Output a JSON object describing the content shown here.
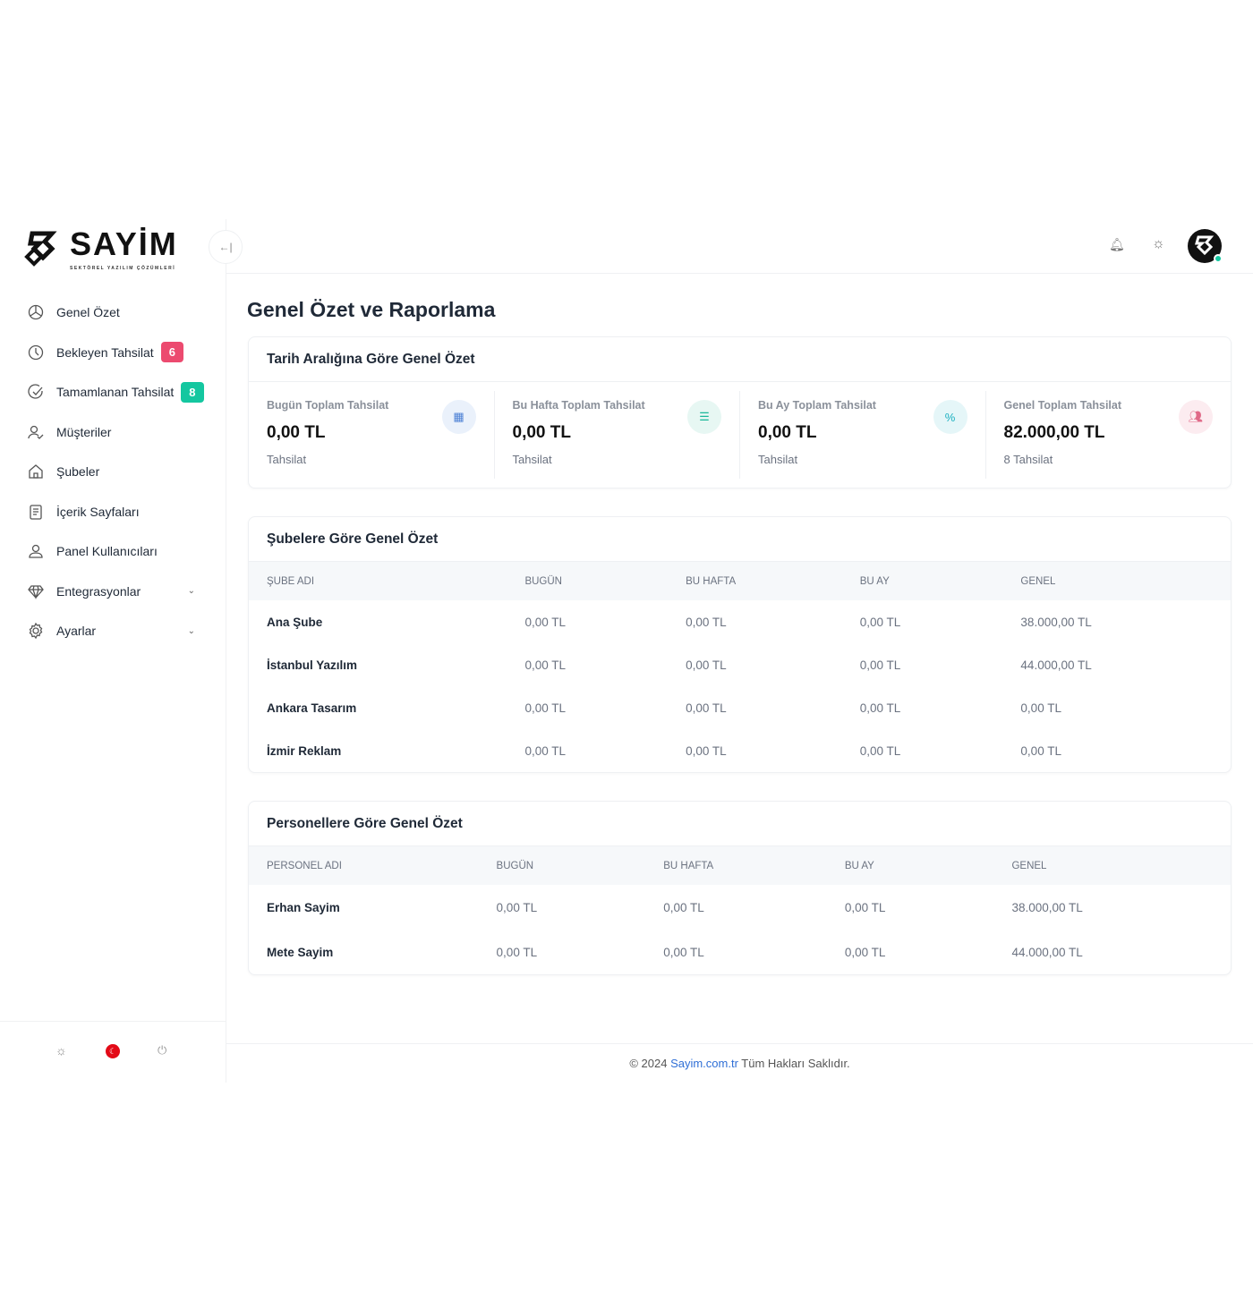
{
  "brand": {
    "name": "SAYİM",
    "tagline": "SEKTÖREL YAZILIM ÇÖZÜMLERİ"
  },
  "sidebar": {
    "items": [
      {
        "label": "Genel Özet",
        "icon": "pie-chart-icon"
      },
      {
        "label": "Bekleyen Tahsilat",
        "icon": "clock-icon",
        "badge": "6",
        "badge_color": "#ec4a6f"
      },
      {
        "label": "Tamamlanan Tahsilat",
        "icon": "check-circle-icon",
        "badge": "8",
        "badge_color": "#14c7a0"
      },
      {
        "label": "Müşteriler",
        "icon": "user-check-icon"
      },
      {
        "label": "Şubeler",
        "icon": "home-icon"
      },
      {
        "label": "İçerik Sayfaları",
        "icon": "document-icon"
      },
      {
        "label": "Panel Kullanıcıları",
        "icon": "user-icon"
      },
      {
        "label": "Entegrasyonlar",
        "icon": "diamond-icon",
        "has_submenu": true
      },
      {
        "label": "Ayarlar",
        "icon": "gear-icon",
        "has_submenu": true
      }
    ]
  },
  "page": {
    "title": "Genel Özet ve Raporlama"
  },
  "summary": {
    "title": "Tarih Aralığına Göre Genel Özet",
    "stats": [
      {
        "label": "Bugün Toplam Tahsilat",
        "value": "0,00 TL",
        "sub": "Tahsilat",
        "icon": "store-icon",
        "color": "#4a7fd4",
        "bg": "#eaf1fb"
      },
      {
        "label": "Bu Hafta Toplam Tahsilat",
        "value": "0,00 TL",
        "sub": "Tahsilat",
        "icon": "list-icon",
        "color": "#1bb89a",
        "bg": "#e7f7f3"
      },
      {
        "label": "Bu Ay Toplam Tahsilat",
        "value": "0,00 TL",
        "sub": "Tahsilat",
        "icon": "percent-icon",
        "color": "#1bb0c0",
        "bg": "#e5f6f8"
      },
      {
        "label": "Genel Toplam Tahsilat",
        "value": "82.000,00 TL",
        "sub": "8 Tahsilat",
        "icon": "users-icon",
        "color": "#e06a88",
        "bg": "#fcecf0"
      }
    ]
  },
  "branches": {
    "title": "Şubelere Göre Genel Özet",
    "columns": [
      "ŞUBE ADI",
      "BUGÜN",
      "BU HAFTA",
      "BU AY",
      "GENEL"
    ],
    "rows": [
      [
        "Ana Şube",
        "0,00 TL",
        "0,00 TL",
        "0,00 TL",
        "38.000,00 TL"
      ],
      [
        "İstanbul Yazılım",
        "0,00 TL",
        "0,00 TL",
        "0,00 TL",
        "44.000,00 TL"
      ],
      [
        "Ankara Tasarım",
        "0,00 TL",
        "0,00 TL",
        "0,00 TL",
        "0,00 TL"
      ],
      [
        "İzmir Reklam",
        "0,00 TL",
        "0,00 TL",
        "0,00 TL",
        "0,00 TL"
      ]
    ]
  },
  "staff": {
    "title": "Personellere Göre Genel Özet",
    "columns": [
      "PERSONEL ADI",
      "BUGÜN",
      "BU HAFTA",
      "BU AY",
      "GENEL"
    ],
    "rows": [
      [
        "Erhan Sayim",
        "0,00 TL",
        "0,00 TL",
        "0,00 TL",
        "38.000,00 TL"
      ],
      [
        "Mete Sayim",
        "0,00 TL",
        "0,00 TL",
        "0,00 TL",
        "44.000,00 TL"
      ]
    ]
  },
  "footer": {
    "prefix": "© 2024",
    "link": "Sayim.com.tr",
    "suffix": "Tüm Hakları Saklıdır."
  }
}
